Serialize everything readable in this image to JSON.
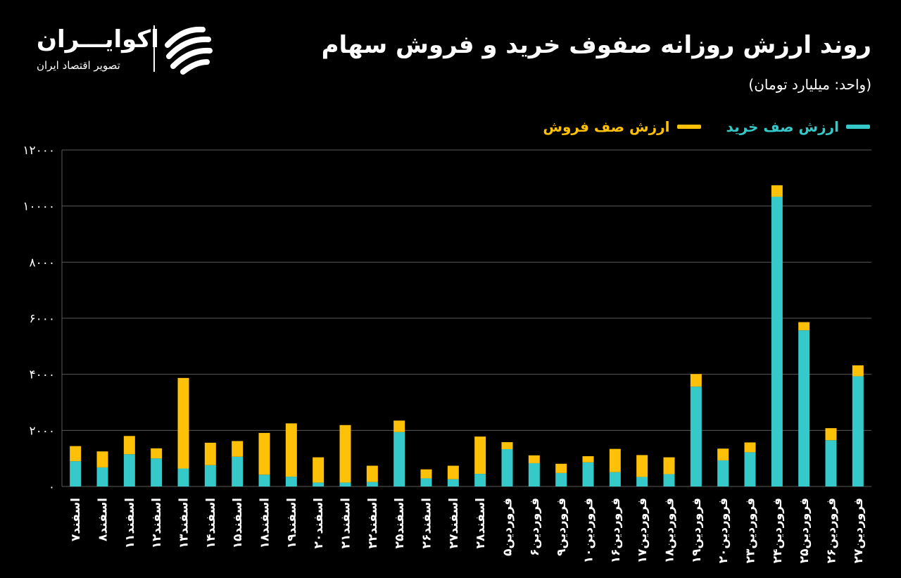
{
  "header": {
    "title": "روند ارزش روزانه صفوف خرید و فروش سهام",
    "unit": "(واحد: میلیارد تومان)"
  },
  "logo": {
    "name": "اکوایـــران",
    "subtitle": "تصویر اقتصاد ایران"
  },
  "colors": {
    "buy": "#35c9c9",
    "sell": "#ffc107",
    "grid": "#5a5a5a",
    "text": "#ffffff"
  },
  "chart_data": {
    "type": "bar",
    "stacked": true,
    "categories": [
      "اسفند۷",
      "اسفند۸",
      "اسفند۱۱",
      "اسفند۱۲",
      "اسفند۱۳",
      "اسفند۱۴",
      "اسفند۱۵",
      "اسفند۱۸",
      "اسفند۱۹",
      "اسفند۲۰",
      "اسفند۲۱",
      "اسفند۲۲",
      "اسفند۲۵",
      "اسفند۲۶",
      "اسفند۲۷",
      "اسفند۲۸",
      "فروردین۵",
      "فروردین۶",
      "فروردین۹",
      "فروردین۱۰",
      "فروردین۱۶",
      "فروردین۱۷",
      "فروردین۱۸",
      "فروردین۱۹",
      "فروردین۲۰",
      "فروردین۲۳",
      "فروردین۲۴",
      "فروردین۲۵",
      "فروردین۲۶",
      "فروردین۲۷"
    ],
    "series": [
      {
        "name": "ارزش صف خرید",
        "values": [
          900,
          680,
          1150,
          1000,
          640,
          760,
          1060,
          420,
          350,
          140,
          140,
          160,
          1940,
          290,
          260,
          450,
          1330,
          830,
          480,
          860,
          510,
          340,
          440,
          3560,
          930,
          1220,
          10330,
          5570,
          1650,
          3930
        ]
      },
      {
        "name": "ارزش صف فروش",
        "values": [
          540,
          570,
          650,
          360,
          3230,
          800,
          560,
          1490,
          1900,
          900,
          2050,
          580,
          410,
          320,
          480,
          1330,
          250,
          280,
          330,
          220,
          830,
          780,
          600,
          450,
          420,
          350,
          410,
          290,
          430,
          390
        ]
      }
    ],
    "ylim": [
      0,
      12000
    ],
    "yticks": [
      "۰",
      "۲۰۰۰",
      "۴۰۰۰",
      "۶۰۰۰",
      "۸۰۰۰",
      "۱۰۰۰۰",
      "۱۲۰۰۰"
    ],
    "ytick_values": [
      0,
      2000,
      4000,
      6000,
      8000,
      10000,
      12000
    ],
    "grid": true,
    "legend_position": "top-right"
  }
}
